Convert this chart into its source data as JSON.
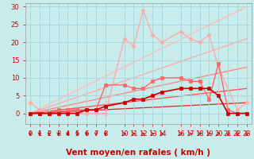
{
  "bg_color": "#c8ecec",
  "grid_color": "#a8d8d8",
  "xlabel": "Vent moyen/en rafales ( km/h )",
  "xlim": [
    -0.5,
    23.5
  ],
  "ylim": [
    -3,
    31
  ],
  "yticks": [
    0,
    5,
    10,
    15,
    20,
    25,
    30
  ],
  "xticks": [
    0,
    1,
    2,
    3,
    4,
    5,
    6,
    7,
    8,
    10,
    11,
    12,
    13,
    14,
    16,
    17,
    18,
    19,
    20,
    21,
    22,
    23
  ],
  "lines": [
    {
      "x": [
        0,
        1,
        2,
        3,
        4,
        5,
        6,
        7,
        8,
        10,
        11,
        12,
        13,
        14,
        16,
        17,
        18,
        19,
        20,
        22,
        23
      ],
      "y": [
        3,
        1,
        0,
        0,
        0,
        0,
        0,
        0,
        0,
        21,
        19,
        29,
        22,
        20,
        23,
        21,
        20,
        22,
        13,
        1,
        3
      ],
      "color": "#ffaaaa",
      "marker": "D",
      "markersize": 2.5,
      "linewidth": 1.0,
      "zorder": 3
    },
    {
      "x": [
        0,
        1,
        2,
        3,
        4,
        5,
        6,
        7,
        8,
        10,
        11,
        12,
        13,
        14,
        16,
        17,
        18,
        19,
        20,
        21,
        22,
        23
      ],
      "y": [
        0,
        0,
        0,
        1,
        1,
        1,
        1,
        1,
        8,
        8,
        7,
        7,
        9,
        10,
        10,
        9,
        9,
        4,
        14,
        1,
        0,
        0
      ],
      "color": "#ff6666",
      "marker": "s",
      "markersize": 2.5,
      "linewidth": 1.0,
      "zorder": 4
    },
    {
      "x": [
        0,
        1,
        2,
        3,
        4,
        5,
        6,
        7,
        8,
        10,
        11,
        12,
        13,
        14,
        16,
        17,
        18,
        19,
        20,
        21,
        22,
        23
      ],
      "y": [
        0,
        0,
        0,
        0,
        0,
        0,
        1,
        1,
        2,
        3,
        4,
        4,
        5,
        6,
        7,
        7,
        7,
        7,
        5,
        0,
        0,
        0
      ],
      "color": "#cc0000",
      "marker": "s",
      "markersize": 2.5,
      "linewidth": 1.2,
      "zorder": 5
    },
    {
      "x": [
        0,
        23
      ],
      "y": [
        0,
        30
      ],
      "color": "#ffbbbb",
      "marker": null,
      "linewidth": 1.0,
      "zorder": 1
    },
    {
      "x": [
        0,
        23
      ],
      "y": [
        0,
        21
      ],
      "color": "#ffaaaa",
      "marker": null,
      "linewidth": 1.0,
      "zorder": 1
    },
    {
      "x": [
        0,
        23
      ],
      "y": [
        0,
        13
      ],
      "color": "#ff8888",
      "marker": null,
      "linewidth": 1.0,
      "zorder": 1
    },
    {
      "x": [
        0,
        23
      ],
      "y": [
        0,
        7
      ],
      "color": "#ff5555",
      "marker": null,
      "linewidth": 1.0,
      "zorder": 1
    },
    {
      "x": [
        0,
        23
      ],
      "y": [
        0,
        3
      ],
      "color": "#dd2222",
      "marker": null,
      "linewidth": 0.9,
      "zorder": 1
    }
  ],
  "arrows_down_x": [
    0,
    1,
    2,
    3,
    4,
    5,
    6,
    7,
    8,
    21,
    22,
    23
  ],
  "arrows_right_x": [
    10,
    11,
    12,
    13,
    14,
    16,
    17,
    18,
    19,
    20
  ],
  "arrow_color": "#cc0000",
  "xlabel_color": "#cc0000",
  "xlabel_fontsize": 7.5,
  "tick_color": "#cc0000",
  "tick_fontsize": 6
}
